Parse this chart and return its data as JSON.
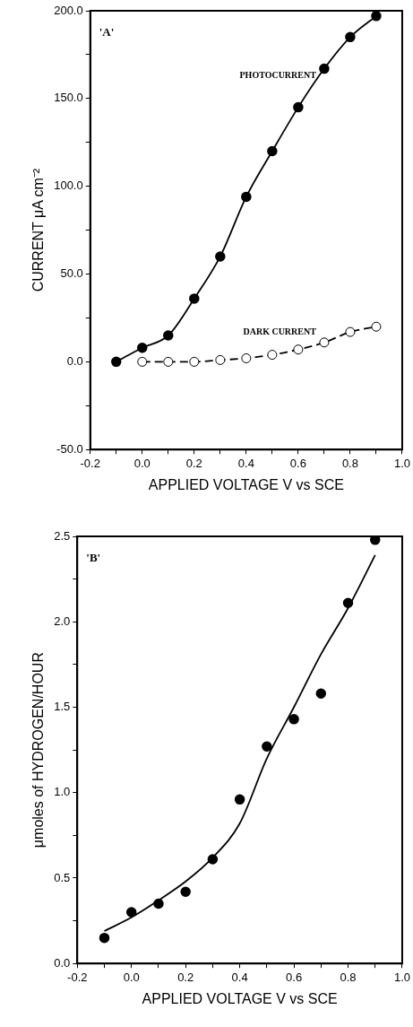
{
  "chart_data": [
    {
      "type": "line",
      "xlabel": "APPLIED VOLTAGE V vs SCE",
      "ylabel": "CURRENT μA cm⁻²",
      "annotations": [
        "'A'"
      ],
      "grid": false,
      "legend": false,
      "xlim": [
        -0.2,
        1.0
      ],
      "xticks": [
        {
          "value": -0.2,
          "label": "-0.2"
        },
        {
          "value": -0.1,
          "label": null
        },
        {
          "value": 0,
          "label": "0.0"
        },
        {
          "value": 0.1,
          "label": null
        },
        {
          "value": 0.2,
          "label": "0.2"
        },
        {
          "value": 0.3,
          "label": null
        },
        {
          "value": 0.4,
          "label": "0.4"
        },
        {
          "value": 0.5,
          "label": null
        },
        {
          "value": 0.6,
          "label": "0.6"
        },
        {
          "value": 0.7,
          "label": null
        },
        {
          "value": 0.8,
          "label": "0.8"
        },
        {
          "value": 0.9,
          "label": null
        },
        {
          "value": 1.0,
          "label": "1.0"
        }
      ],
      "ylim": [
        -50,
        200
      ],
      "yticks": [
        {
          "value": -50,
          "label": "-50.0"
        },
        {
          "value": -25,
          "label": null
        },
        {
          "value": 0,
          "label": "0.0"
        },
        {
          "value": 25,
          "label": null
        },
        {
          "value": 50,
          "label": "50.0"
        },
        {
          "value": 75,
          "label": null
        },
        {
          "value": 100,
          "label": "100.0"
        },
        {
          "value": 125,
          "label": null
        },
        {
          "value": 150,
          "label": "150.0"
        },
        {
          "value": 175,
          "label": null
        },
        {
          "value": 200,
          "label": "200.0"
        }
      ],
      "series": [
        {
          "name": "PHOTOCURRENT",
          "color": "#000000",
          "marker": "circle",
          "line_style": "solid",
          "x": [
            -0.1,
            0,
            0.1,
            0.2,
            0.3,
            0.4,
            0.5,
            0.6,
            0.7,
            0.8,
            0.9
          ],
          "values": [
            0,
            8,
            15,
            36,
            60,
            94,
            120,
            145,
            167,
            185,
            197
          ]
        },
        {
          "name": "DARK CURRENT",
          "color": "#000000",
          "marker": "circle-open",
          "line_style": "dashed",
          "x": [
            0,
            0.1,
            0.2,
            0.3,
            0.4,
            0.5,
            0.6,
            0.7,
            0.8,
            0.9
          ],
          "values": [
            0,
            0,
            0,
            1,
            2,
            4,
            7,
            11,
            17,
            20
          ]
        }
      ]
    },
    {
      "type": "scatter",
      "xlabel": "APPLIED VOLTAGE V vs SCE",
      "ylabel": "μmoles of HYDROGEN/HOUR",
      "annotations": [
        "'B'"
      ],
      "grid": false,
      "legend": false,
      "xlim": [
        -0.2,
        1.0
      ],
      "xticks": [
        {
          "value": -0.2,
          "label": "-0.2"
        },
        {
          "value": -0.1,
          "label": null
        },
        {
          "value": 0,
          "label": "0.0"
        },
        {
          "value": 0.1,
          "label": null
        },
        {
          "value": 0.2,
          "label": "0.2"
        },
        {
          "value": 0.3,
          "label": null
        },
        {
          "value": 0.4,
          "label": "0.4"
        },
        {
          "value": 0.5,
          "label": null
        },
        {
          "value": 0.6,
          "label": "0.6"
        },
        {
          "value": 0.7,
          "label": null
        },
        {
          "value": 0.8,
          "label": "0.8"
        },
        {
          "value": 0.9,
          "label": null
        },
        {
          "value": 1.0,
          "label": "1.0"
        }
      ],
      "ylim": [
        0,
        2.5
      ],
      "yticks": [
        {
          "value": 0,
          "label": "0.0"
        },
        {
          "value": 0.25,
          "label": null
        },
        {
          "value": 0.5,
          "label": "0.5"
        },
        {
          "value": 0.75,
          "label": null
        },
        {
          "value": 1.0,
          "label": "1.0"
        },
        {
          "value": 1.25,
          "label": null
        },
        {
          "value": 1.5,
          "label": "1.5"
        },
        {
          "value": 1.75,
          "label": null
        },
        {
          "value": 2.0,
          "label": "2.0"
        },
        {
          "value": 2.25,
          "label": null
        },
        {
          "value": 2.5,
          "label": "2.5"
        }
      ],
      "series": [
        {
          "type": "scatter",
          "color": "#000000",
          "marker": "circle",
          "x": [
            -0.1,
            0,
            0.1,
            0.2,
            0.3,
            0.4,
            0.5,
            0.6,
            0.7,
            0.8,
            0.9
          ],
          "values": [
            0.15,
            0.3,
            0.35,
            0.42,
            0.61,
            0.96,
            1.27,
            1.43,
            1.58,
            2.11,
            2.48
          ]
        },
        {
          "type": "line",
          "color": "#000000",
          "marker": "none",
          "line_style": "solid",
          "x": [
            -0.1,
            0,
            0.1,
            0.2,
            0.3,
            0.4,
            0.5,
            0.6,
            0.7,
            0.8,
            0.9
          ],
          "values": [
            0.19,
            0.27,
            0.37,
            0.48,
            0.62,
            0.82,
            1.2,
            1.5,
            1.81,
            2.08,
            2.39
          ]
        }
      ]
    }
  ]
}
